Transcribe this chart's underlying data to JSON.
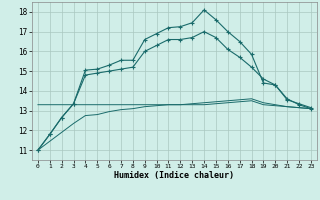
{
  "title": "",
  "xlabel": "Humidex (Indice chaleur)",
  "ylabel": "",
  "xlim": [
    -0.5,
    23.5
  ],
  "ylim": [
    10.5,
    18.5
  ],
  "xticks": [
    0,
    1,
    2,
    3,
    4,
    5,
    6,
    7,
    8,
    9,
    10,
    11,
    12,
    13,
    14,
    15,
    16,
    17,
    18,
    19,
    20,
    21,
    22,
    23
  ],
  "yticks": [
    11,
    12,
    13,
    14,
    15,
    16,
    17,
    18
  ],
  "bg_color": "#d0eee8",
  "grid_color": "#aac8c0",
  "line_color": "#1a6b6b",
  "line1_x": [
    0,
    1,
    2,
    3,
    4,
    5,
    6,
    7,
    8,
    9,
    10,
    11,
    12,
    13,
    14,
    15,
    16,
    17,
    18,
    19,
    20,
    21,
    22,
    23
  ],
  "line1_y": [
    11.0,
    11.8,
    12.65,
    13.35,
    15.05,
    15.1,
    15.3,
    15.55,
    15.55,
    16.6,
    16.9,
    17.2,
    17.25,
    17.45,
    18.1,
    17.6,
    17.0,
    16.5,
    15.85,
    14.4,
    14.3,
    13.55,
    13.35,
    13.15
  ],
  "line2_x": [
    0,
    1,
    2,
    3,
    4,
    5,
    6,
    7,
    8,
    9,
    10,
    11,
    12,
    13,
    14,
    15,
    16,
    17,
    18,
    19,
    20,
    21,
    22,
    23
  ],
  "line2_y": [
    11.0,
    11.8,
    12.65,
    13.35,
    14.8,
    14.9,
    15.0,
    15.1,
    15.2,
    16.0,
    16.3,
    16.6,
    16.6,
    16.7,
    17.0,
    16.7,
    16.1,
    15.7,
    15.2,
    14.6,
    14.3,
    13.6,
    13.3,
    13.1
  ],
  "line3_x": [
    0,
    1,
    2,
    3,
    4,
    5,
    6,
    7,
    8,
    9,
    10,
    11,
    12,
    13,
    14,
    15,
    16,
    17,
    18,
    19,
    20,
    21,
    22,
    23
  ],
  "line3_y": [
    13.3,
    13.3,
    13.3,
    13.3,
    13.3,
    13.3,
    13.3,
    13.3,
    13.3,
    13.3,
    13.3,
    13.3,
    13.3,
    13.3,
    13.3,
    13.35,
    13.4,
    13.45,
    13.5,
    13.3,
    13.25,
    13.2,
    13.15,
    13.1
  ],
  "line4_x": [
    0,
    1,
    2,
    3,
    4,
    5,
    6,
    7,
    8,
    9,
    10,
    11,
    12,
    13,
    14,
    15,
    16,
    17,
    18,
    19,
    20,
    21,
    22,
    23
  ],
  "line4_y": [
    11.0,
    11.45,
    11.9,
    12.35,
    12.75,
    12.8,
    12.95,
    13.05,
    13.1,
    13.2,
    13.25,
    13.3,
    13.3,
    13.35,
    13.4,
    13.45,
    13.5,
    13.55,
    13.6,
    13.4,
    13.3,
    13.2,
    13.15,
    13.1
  ]
}
